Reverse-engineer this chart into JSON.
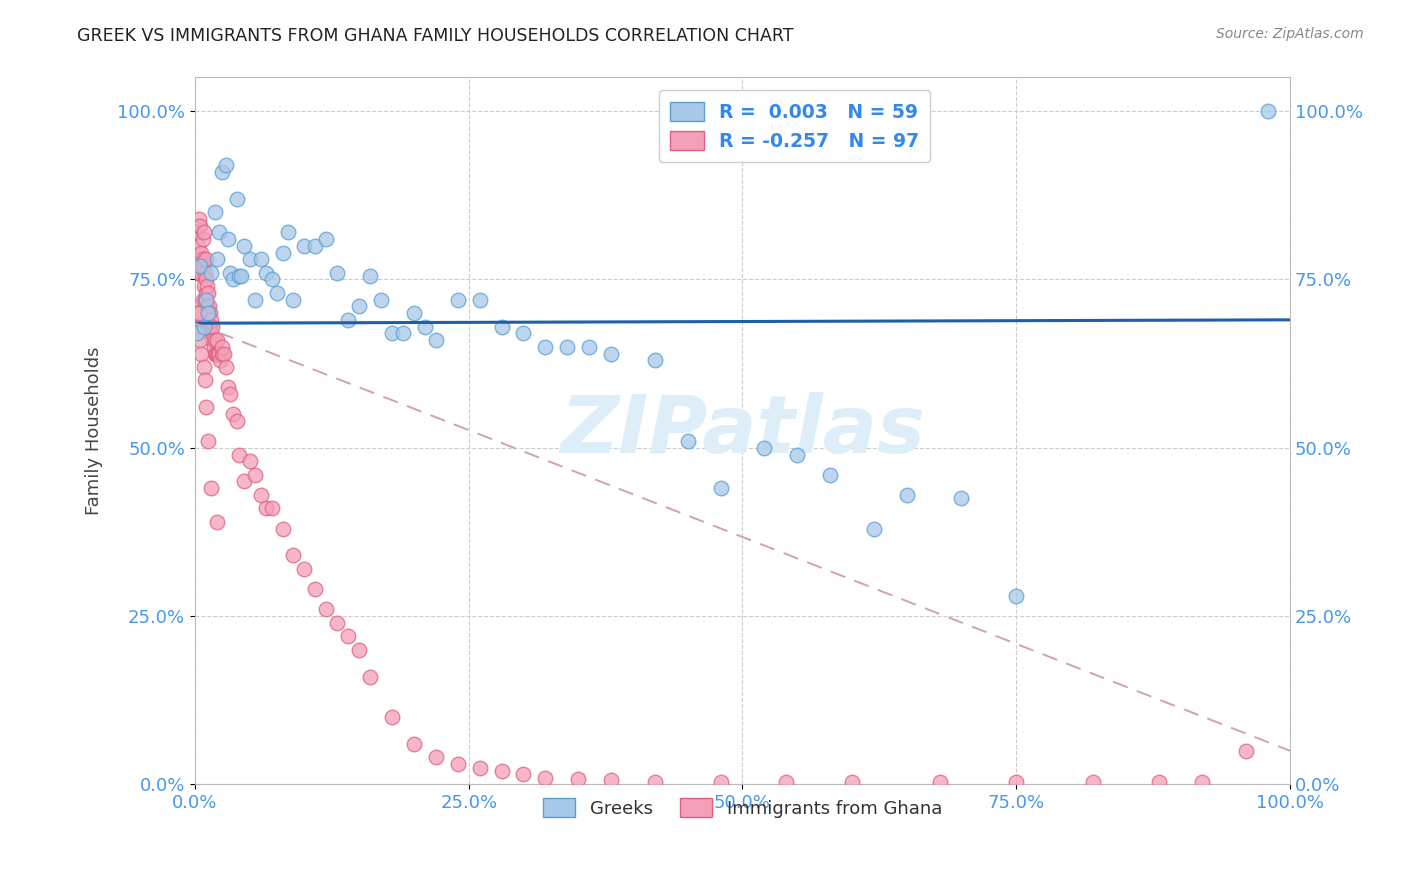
{
  "title": "GREEK VS IMMIGRANTS FROM GHANA FAMILY HOUSEHOLDS CORRELATION CHART",
  "source": "Source: ZipAtlas.com",
  "ylabel": "Family Households",
  "blue_color": "#a8c8e8",
  "blue_edge_color": "#5a9fd4",
  "blue_line_color": "#1e5fa8",
  "pink_color": "#f4a0b8",
  "pink_edge_color": "#e06080",
  "pink_line_color": "#e06080",
  "pink_dash_color": "#d0a0b8",
  "watermark": "ZIPatlas",
  "watermark_color": "#ddeef8",
  "legend_r1": "R =  0.003",
  "legend_n1": "N = 59",
  "legend_r2": "R = -0.257",
  "legend_n2": "N = 97",
  "blue_scatter_x": [
    0.002,
    0.005,
    0.008,
    0.01,
    0.012,
    0.015,
    0.018,
    0.02,
    0.022,
    0.025,
    0.028,
    0.03,
    0.032,
    0.035,
    0.038,
    0.04,
    0.042,
    0.045,
    0.05,
    0.055,
    0.06,
    0.065,
    0.07,
    0.075,
    0.08,
    0.085,
    0.09,
    0.1,
    0.11,
    0.12,
    0.13,
    0.14,
    0.15,
    0.16,
    0.17,
    0.18,
    0.19,
    0.2,
    0.21,
    0.22,
    0.24,
    0.26,
    0.28,
    0.3,
    0.32,
    0.34,
    0.36,
    0.38,
    0.42,
    0.45,
    0.48,
    0.52,
    0.55,
    0.58,
    0.62,
    0.65,
    0.7,
    0.75,
    0.98
  ],
  "blue_scatter_y": [
    0.67,
    0.77,
    0.68,
    0.72,
    0.7,
    0.76,
    0.85,
    0.78,
    0.82,
    0.91,
    0.92,
    0.81,
    0.76,
    0.75,
    0.87,
    0.755,
    0.755,
    0.8,
    0.78,
    0.72,
    0.78,
    0.76,
    0.75,
    0.73,
    0.79,
    0.82,
    0.72,
    0.8,
    0.8,
    0.81,
    0.76,
    0.69,
    0.71,
    0.755,
    0.72,
    0.67,
    0.67,
    0.7,
    0.68,
    0.66,
    0.72,
    0.72,
    0.68,
    0.67,
    0.65,
    0.65,
    0.65,
    0.64,
    0.63,
    0.51,
    0.44,
    0.5,
    0.49,
    0.46,
    0.38,
    0.43,
    0.425,
    0.28,
    1.0
  ],
  "pink_scatter_x": [
    0.001,
    0.002,
    0.002,
    0.003,
    0.003,
    0.004,
    0.004,
    0.005,
    0.005,
    0.006,
    0.006,
    0.007,
    0.007,
    0.007,
    0.008,
    0.008,
    0.008,
    0.009,
    0.009,
    0.01,
    0.01,
    0.01,
    0.011,
    0.011,
    0.012,
    0.012,
    0.013,
    0.013,
    0.014,
    0.014,
    0.015,
    0.015,
    0.016,
    0.016,
    0.017,
    0.018,
    0.018,
    0.019,
    0.02,
    0.02,
    0.021,
    0.022,
    0.023,
    0.025,
    0.025,
    0.027,
    0.028,
    0.03,
    0.032,
    0.035,
    0.038,
    0.04,
    0.045,
    0.05,
    0.055,
    0.06,
    0.065,
    0.07,
    0.08,
    0.09,
    0.1,
    0.11,
    0.12,
    0.13,
    0.14,
    0.15,
    0.16,
    0.18,
    0.2,
    0.22,
    0.24,
    0.26,
    0.28,
    0.3,
    0.32,
    0.35,
    0.38,
    0.42,
    0.48,
    0.54,
    0.6,
    0.68,
    0.75,
    0.82,
    0.88,
    0.92,
    0.96,
    0.003,
    0.004,
    0.005,
    0.006,
    0.008,
    0.009,
    0.01,
    0.012,
    0.015,
    0.02
  ],
  "pink_scatter_y": [
    0.7,
    0.76,
    0.82,
    0.8,
    0.76,
    0.83,
    0.84,
    0.78,
    0.83,
    0.76,
    0.79,
    0.72,
    0.77,
    0.81,
    0.74,
    0.78,
    0.82,
    0.72,
    0.76,
    0.73,
    0.75,
    0.78,
    0.71,
    0.74,
    0.7,
    0.73,
    0.68,
    0.71,
    0.68,
    0.7,
    0.67,
    0.69,
    0.66,
    0.68,
    0.65,
    0.64,
    0.66,
    0.64,
    0.64,
    0.66,
    0.64,
    0.64,
    0.63,
    0.64,
    0.65,
    0.64,
    0.62,
    0.59,
    0.58,
    0.55,
    0.54,
    0.49,
    0.45,
    0.48,
    0.46,
    0.43,
    0.41,
    0.41,
    0.38,
    0.34,
    0.32,
    0.29,
    0.26,
    0.24,
    0.22,
    0.2,
    0.16,
    0.1,
    0.06,
    0.04,
    0.03,
    0.025,
    0.02,
    0.015,
    0.01,
    0.008,
    0.006,
    0.004,
    0.003,
    0.003,
    0.003,
    0.003,
    0.003,
    0.003,
    0.003,
    0.003,
    0.05,
    0.68,
    0.7,
    0.66,
    0.64,
    0.62,
    0.6,
    0.56,
    0.51,
    0.44,
    0.39
  ],
  "xlim": [
    0.0,
    1.0
  ],
  "ylim": [
    0.0,
    1.05
  ],
  "blue_trend_y0": 0.685,
  "blue_trend_y1": 0.69,
  "pink_trend_y0": 0.685,
  "pink_trend_y1": 0.05
}
